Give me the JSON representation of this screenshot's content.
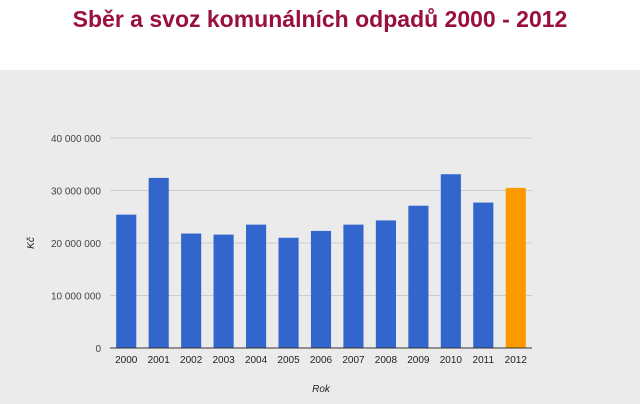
{
  "page": {
    "title": "Sběr a svoz komunálních odpadů 2000 - 2012"
  },
  "colors": {
    "title": "#990f3d",
    "bar": "#3366cc",
    "highlight": "#ff9900",
    "background": "#ebebeb",
    "gridline": "#cccccc",
    "baseline": "#333333"
  },
  "chart_data": {
    "type": "bar",
    "title": "",
    "xlabel": "Rok",
    "ylabel": "Kč",
    "categories": [
      "2000",
      "2001",
      "2002",
      "2003",
      "2004",
      "2005",
      "2006",
      "2007",
      "2008",
      "2009",
      "2010",
      "2011",
      "2012"
    ],
    "values": [
      25400000,
      32400000,
      21800000,
      21600000,
      23500000,
      21000000,
      22300000,
      23500000,
      24300000,
      27100000,
      33100000,
      27700000,
      30500000
    ],
    "highlight_index": 12,
    "ylim": [
      0,
      40000000
    ],
    "yticks": [
      0,
      10000000,
      20000000,
      30000000,
      40000000
    ],
    "ytick_labels": [
      "0",
      "10 000 000",
      "20 000 000",
      "30 000 000",
      "40 000 000"
    ],
    "grid": true,
    "legend": "none"
  }
}
